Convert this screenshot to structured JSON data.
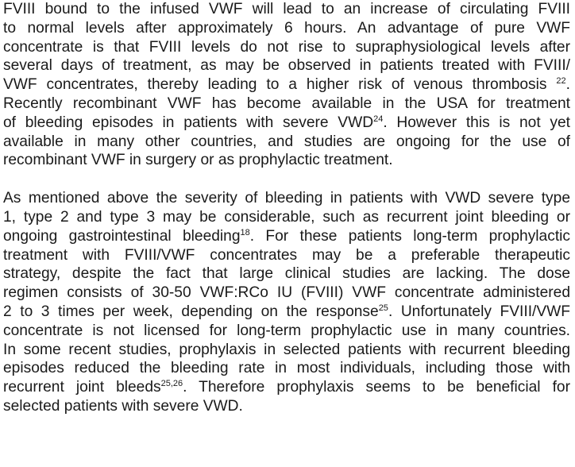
{
  "paragraphs": [
    {
      "lines": [
        {
          "segments": [
            {
              "t": "FVIII bound to the infused VWF will lead to an increase of circulating FVIII"
            }
          ]
        },
        {
          "segments": [
            {
              "t": "to normal levels after approximately 6 hours. An advantage of pure VWF"
            }
          ]
        },
        {
          "segments": [
            {
              "t": "concentrate is that FVIII levels do not rise to supraphysiological levels after"
            }
          ]
        },
        {
          "segments": [
            {
              "t": "several days of treatment, as may be observed in patients treated with FVIII/"
            }
          ]
        },
        {
          "segments": [
            {
              "t": "VWF concentrates, thereby leading to a higher risk of venous thrombosis "
            },
            {
              "sup": "22"
            },
            {
              "t": "."
            }
          ]
        },
        {
          "segments": [
            {
              "t": "Recently recombinant VWF has become available in the USA for treatment"
            }
          ]
        },
        {
          "segments": [
            {
              "t": "of bleeding episodes in patients with severe VWD"
            },
            {
              "sup": "24"
            },
            {
              "t": ". However this is not yet"
            }
          ]
        },
        {
          "segments": [
            {
              "t": "available in many other countries, and studies are ongoing for the use of"
            }
          ]
        },
        {
          "segments": [
            {
              "t": "recombinant VWF in surgery or as prophylactic treatment."
            }
          ]
        }
      ]
    },
    {
      "lines": [
        {
          "segments": [
            {
              "t": "As mentioned above the severity of bleeding in patients with VWD severe type"
            }
          ]
        },
        {
          "segments": [
            {
              "t": "1, type 2 and type 3 may be considerable, such as recurrent joint bleeding or"
            }
          ]
        },
        {
          "segments": [
            {
              "t": "ongoing gastrointestinal bleeding"
            },
            {
              "sup": "18"
            },
            {
              "t": ". For these patients long-term prophylactic"
            }
          ]
        },
        {
          "segments": [
            {
              "t": "treatment with FVIII/VWF concentrates may be a preferable therapeutic"
            }
          ]
        },
        {
          "segments": [
            {
              "t": "strategy, despite the fact that large clinical studies are lacking. The dose"
            }
          ]
        },
        {
          "segments": [
            {
              "t": "regimen consists of 30-50 VWF:RCo IU (FVIII) VWF concentrate administered"
            }
          ]
        },
        {
          "segments": [
            {
              "t": "2 to 3 times per week, depending on the response"
            },
            {
              "sup": "25"
            },
            {
              "t": ". Unfortunately FVIII/VWF"
            }
          ]
        },
        {
          "segments": [
            {
              "t": "concentrate is not licensed for long-term prophylactic use in many countries."
            }
          ]
        },
        {
          "segments": [
            {
              "t": "In some recent studies, prophylaxis in selected patients with recurrent bleeding"
            }
          ]
        },
        {
          "segments": [
            {
              "t": "episodes reduced the bleeding rate in most individuals, including those with"
            }
          ]
        },
        {
          "segments": [
            {
              "t": "recurrent joint bleeds"
            },
            {
              "sup": "25,26"
            },
            {
              "t": ". Therefore prophylaxis seems to be beneficial for"
            }
          ]
        },
        {
          "segments": [
            {
              "t": "selected patients with severe VWD."
            }
          ]
        }
      ]
    }
  ]
}
